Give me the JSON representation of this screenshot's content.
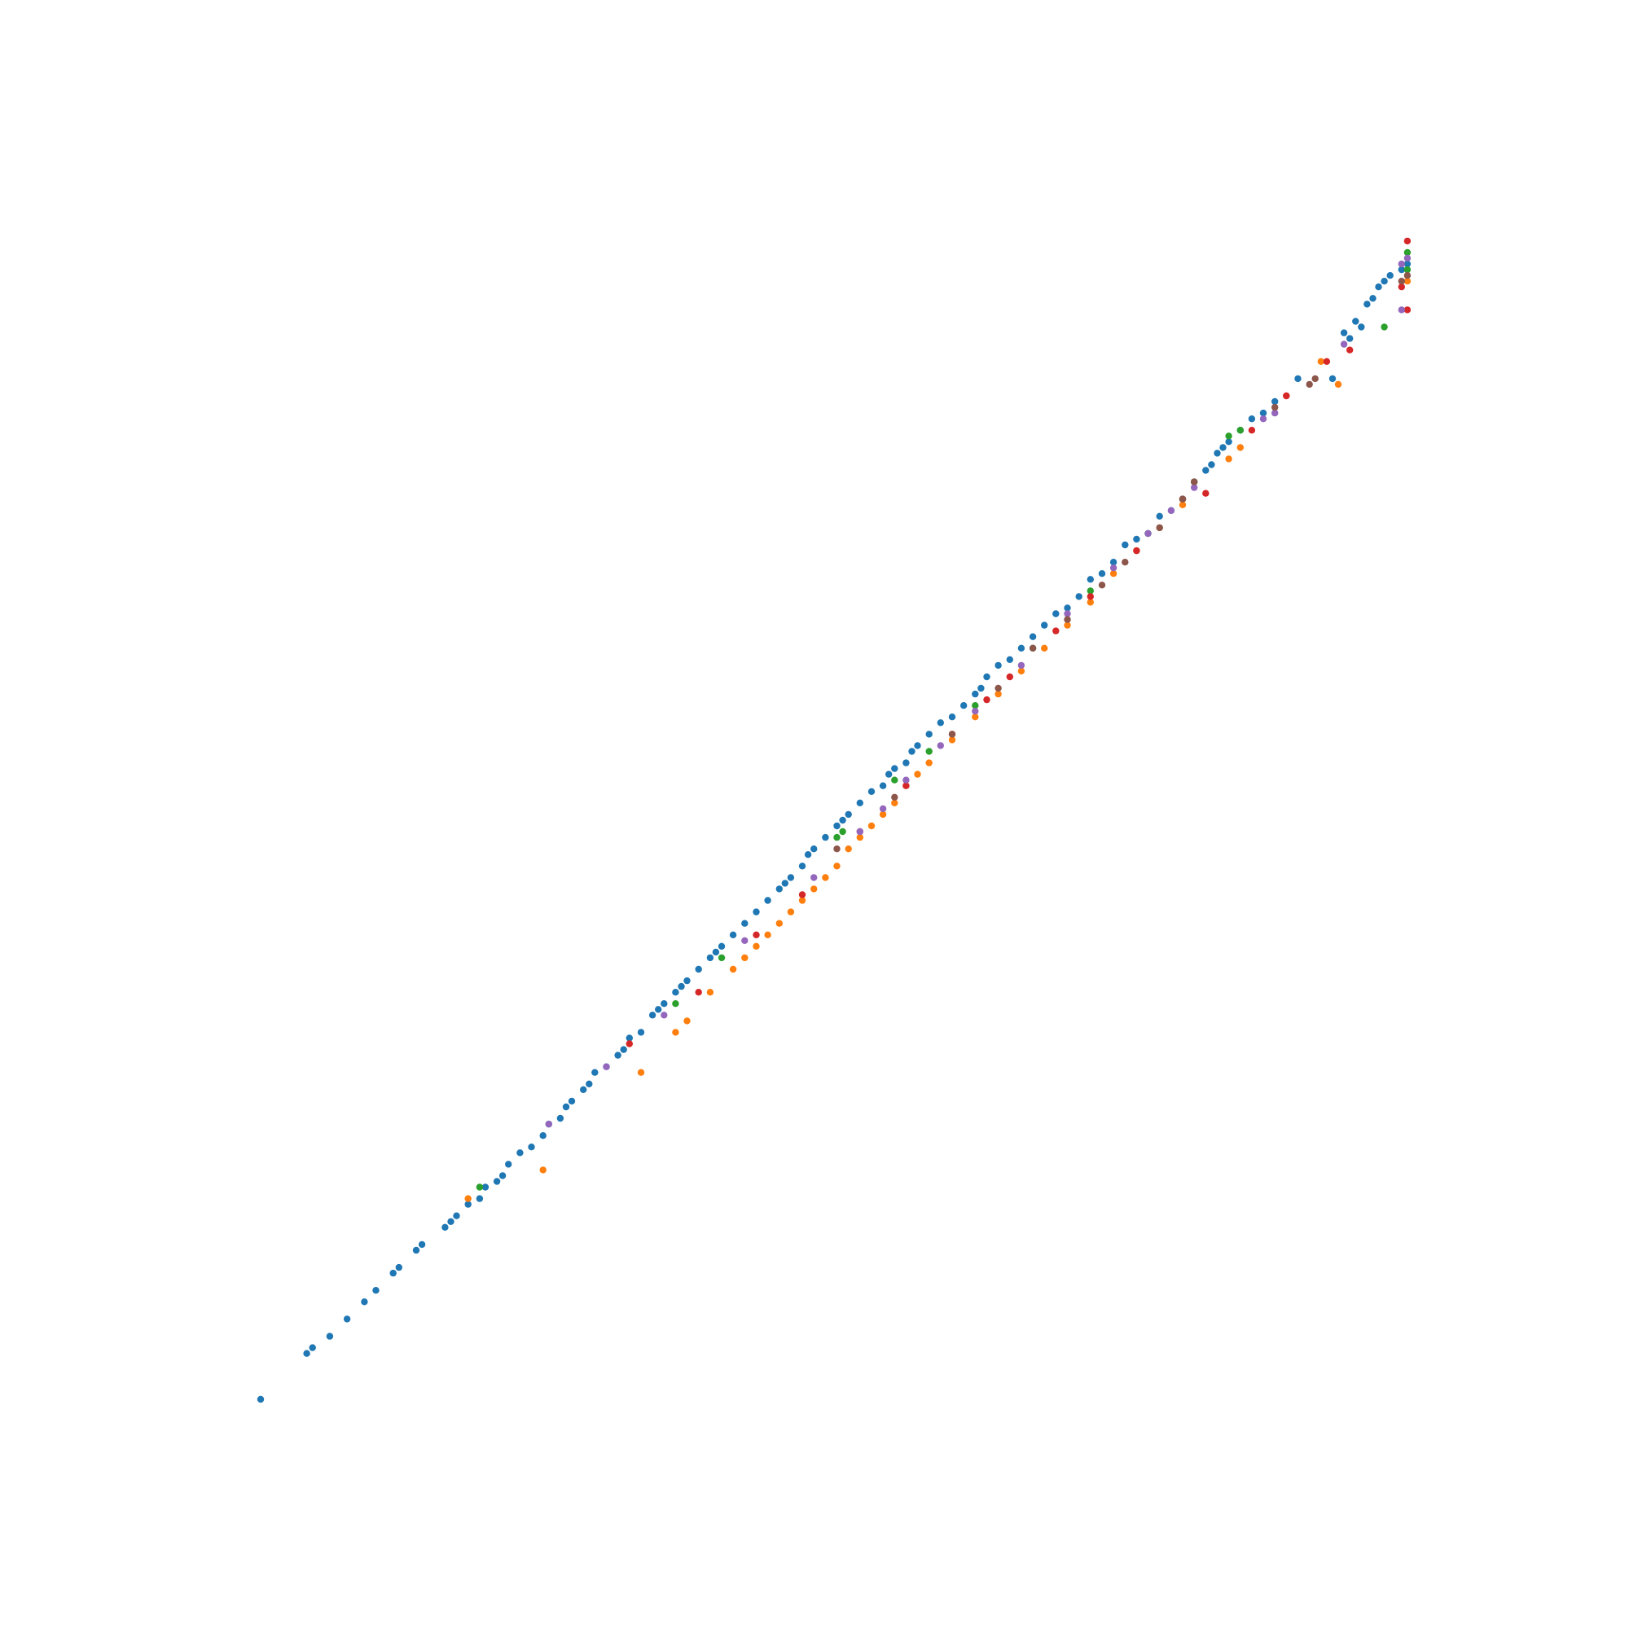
{
  "chart_data": {
    "type": "scatter",
    "title": "",
    "xlabel": "",
    "ylabel": "",
    "axes_visible": false,
    "grid": false,
    "legend": "none",
    "xlim": [
      0,
      1
    ],
    "ylim": [
      0,
      1
    ],
    "series": [
      {
        "color": "#1f77b4",
        "points": [
          [
            0.0,
            0.0
          ],
          [
            0.04,
            0.04
          ],
          [
            0.045,
            0.045
          ],
          [
            0.06,
            0.055
          ],
          [
            0.075,
            0.07
          ],
          [
            0.09,
            0.085
          ],
          [
            0.1,
            0.095
          ],
          [
            0.115,
            0.11
          ],
          [
            0.12,
            0.115
          ],
          [
            0.135,
            0.13
          ],
          [
            0.14,
            0.135
          ],
          [
            0.16,
            0.15
          ],
          [
            0.165,
            0.155
          ],
          [
            0.17,
            0.16
          ],
          [
            0.18,
            0.17
          ],
          [
            0.19,
            0.175
          ],
          [
            0.195,
            0.185
          ],
          [
            0.205,
            0.19
          ],
          [
            0.21,
            0.195
          ],
          [
            0.215,
            0.205
          ],
          [
            0.225,
            0.215
          ],
          [
            0.235,
            0.22
          ],
          [
            0.245,
            0.23
          ],
          [
            0.25,
            0.24
          ],
          [
            0.26,
            0.245
          ],
          [
            0.265,
            0.255
          ],
          [
            0.27,
            0.26
          ],
          [
            0.28,
            0.27
          ],
          [
            0.285,
            0.275
          ],
          [
            0.29,
            0.285
          ],
          [
            0.3,
            0.29
          ],
          [
            0.31,
            0.3
          ],
          [
            0.315,
            0.305
          ],
          [
            0.32,
            0.315
          ],
          [
            0.33,
            0.32
          ],
          [
            0.34,
            0.335
          ],
          [
            0.345,
            0.34
          ],
          [
            0.35,
            0.345
          ],
          [
            0.36,
            0.355
          ],
          [
            0.365,
            0.36
          ],
          [
            0.37,
            0.365
          ],
          [
            0.38,
            0.375
          ],
          [
            0.39,
            0.385
          ],
          [
            0.395,
            0.39
          ],
          [
            0.4,
            0.395
          ],
          [
            0.41,
            0.405
          ],
          [
            0.42,
            0.415
          ],
          [
            0.43,
            0.425
          ],
          [
            0.44,
            0.435
          ],
          [
            0.45,
            0.445
          ],
          [
            0.455,
            0.45
          ],
          [
            0.46,
            0.455
          ],
          [
            0.47,
            0.465
          ],
          [
            0.475,
            0.475
          ],
          [
            0.48,
            0.48
          ],
          [
            0.49,
            0.49
          ],
          [
            0.5,
            0.5
          ],
          [
            0.505,
            0.505
          ],
          [
            0.51,
            0.51
          ],
          [
            0.52,
            0.52
          ],
          [
            0.53,
            0.53
          ],
          [
            0.54,
            0.535
          ],
          [
            0.545,
            0.545
          ],
          [
            0.55,
            0.55
          ],
          [
            0.56,
            0.555
          ],
          [
            0.565,
            0.565
          ],
          [
            0.57,
            0.57
          ],
          [
            0.58,
            0.58
          ],
          [
            0.59,
            0.59
          ],
          [
            0.6,
            0.595
          ],
          [
            0.61,
            0.605
          ],
          [
            0.62,
            0.615
          ],
          [
            0.625,
            0.62
          ],
          [
            0.63,
            0.63
          ],
          [
            0.64,
            0.64
          ],
          [
            0.65,
            0.645
          ],
          [
            0.66,
            0.655
          ],
          [
            0.67,
            0.665
          ],
          [
            0.68,
            0.675
          ],
          [
            0.69,
            0.685
          ],
          [
            0.7,
            0.69
          ],
          [
            0.71,
            0.7
          ],
          [
            0.72,
            0.715
          ],
          [
            0.73,
            0.72
          ],
          [
            0.74,
            0.73
          ],
          [
            0.75,
            0.745
          ],
          [
            0.76,
            0.75
          ],
          [
            0.77,
            0.755
          ],
          [
            0.78,
            0.77
          ],
          [
            0.79,
            0.775
          ],
          [
            0.8,
            0.785
          ],
          [
            0.81,
            0.8
          ],
          [
            0.82,
            0.81
          ],
          [
            0.825,
            0.815
          ],
          [
            0.83,
            0.825
          ],
          [
            0.835,
            0.83
          ],
          [
            0.84,
            0.835
          ],
          [
            0.85,
            0.845
          ],
          [
            0.86,
            0.855
          ],
          [
            0.87,
            0.86
          ],
          [
            0.88,
            0.87
          ],
          [
            0.9,
            0.89
          ],
          [
            0.94,
            0.93
          ],
          [
            0.95,
            0.94
          ],
          [
            0.93,
            0.89
          ],
          [
            0.96,
            0.955
          ],
          [
            0.965,
            0.96
          ],
          [
            0.97,
            0.97
          ],
          [
            0.975,
            0.975
          ],
          [
            0.98,
            0.98
          ],
          [
            0.99,
            0.985
          ],
          [
            0.995,
            0.99
          ],
          [
            0.955,
            0.935
          ],
          [
            0.945,
            0.925
          ]
        ]
      },
      {
        "color": "#ff7f0e",
        "points": [
          [
            0.18,
            0.175
          ],
          [
            0.245,
            0.2
          ],
          [
            0.33,
            0.285
          ],
          [
            0.36,
            0.32
          ],
          [
            0.37,
            0.33
          ],
          [
            0.39,
            0.355
          ],
          [
            0.41,
            0.375
          ],
          [
            0.42,
            0.385
          ],
          [
            0.43,
            0.395
          ],
          [
            0.44,
            0.405
          ],
          [
            0.45,
            0.415
          ],
          [
            0.46,
            0.425
          ],
          [
            0.47,
            0.435
          ],
          [
            0.48,
            0.445
          ],
          [
            0.49,
            0.455
          ],
          [
            0.5,
            0.465
          ],
          [
            0.51,
            0.48
          ],
          [
            0.52,
            0.49
          ],
          [
            0.53,
            0.5
          ],
          [
            0.54,
            0.51
          ],
          [
            0.55,
            0.52
          ],
          [
            0.56,
            0.535
          ],
          [
            0.57,
            0.545
          ],
          [
            0.58,
            0.555
          ],
          [
            0.6,
            0.575
          ],
          [
            0.62,
            0.595
          ],
          [
            0.64,
            0.615
          ],
          [
            0.66,
            0.635
          ],
          [
            0.68,
            0.655
          ],
          [
            0.7,
            0.675
          ],
          [
            0.72,
            0.695
          ],
          [
            0.74,
            0.72
          ],
          [
            0.76,
            0.74
          ],
          [
            0.78,
            0.76
          ],
          [
            0.8,
            0.78
          ],
          [
            0.84,
            0.82
          ],
          [
            0.85,
            0.83
          ],
          [
            0.89,
            0.875
          ],
          [
            0.92,
            0.905
          ],
          [
            0.995,
            0.975
          ],
          [
            0.935,
            0.885
          ]
        ]
      },
      {
        "color": "#2ca02c",
        "points": [
          [
            0.19,
            0.185
          ],
          [
            0.36,
            0.345
          ],
          [
            0.4,
            0.385
          ],
          [
            0.5,
            0.49
          ],
          [
            0.505,
            0.495
          ],
          [
            0.55,
            0.54
          ],
          [
            0.58,
            0.565
          ],
          [
            0.62,
            0.605
          ],
          [
            0.67,
            0.655
          ],
          [
            0.72,
            0.705
          ],
          [
            0.77,
            0.755
          ],
          [
            0.8,
            0.785
          ],
          [
            0.81,
            0.8
          ],
          [
            0.85,
            0.845
          ],
          [
            0.84,
            0.84
          ],
          [
            0.975,
            0.935
          ],
          [
            0.995,
            0.985
          ],
          [
            0.995,
            1.0
          ]
        ]
      },
      {
        "color": "#d62728",
        "points": [
          [
            0.32,
            0.31
          ],
          [
            0.38,
            0.355
          ],
          [
            0.43,
            0.405
          ],
          [
            0.47,
            0.44
          ],
          [
            0.52,
            0.495
          ],
          [
            0.56,
            0.535
          ],
          [
            0.6,
            0.58
          ],
          [
            0.63,
            0.61
          ],
          [
            0.65,
            0.63
          ],
          [
            0.69,
            0.67
          ],
          [
            0.72,
            0.7
          ],
          [
            0.76,
            0.74
          ],
          [
            0.8,
            0.785
          ],
          [
            0.82,
            0.79
          ],
          [
            0.86,
            0.845
          ],
          [
            0.89,
            0.875
          ],
          [
            0.945,
            0.915
          ],
          [
            0.925,
            0.905
          ],
          [
            0.995,
            1.01
          ],
          [
            0.995,
            0.95
          ],
          [
            0.99,
            0.97
          ]
        ]
      },
      {
        "color": "#9467bd",
        "points": [
          [
            0.25,
            0.24
          ],
          [
            0.3,
            0.29
          ],
          [
            0.35,
            0.335
          ],
          [
            0.42,
            0.4
          ],
          [
            0.48,
            0.455
          ],
          [
            0.52,
            0.495
          ],
          [
            0.54,
            0.515
          ],
          [
            0.56,
            0.54
          ],
          [
            0.59,
            0.57
          ],
          [
            0.62,
            0.6
          ],
          [
            0.66,
            0.64
          ],
          [
            0.7,
            0.685
          ],
          [
            0.74,
            0.725
          ],
          [
            0.77,
            0.755
          ],
          [
            0.79,
            0.775
          ],
          [
            0.81,
            0.795
          ],
          [
            0.87,
            0.855
          ],
          [
            0.88,
            0.86
          ],
          [
            0.94,
            0.92
          ],
          [
            0.99,
            0.95
          ],
          [
            0.995,
            0.995
          ],
          [
            0.99,
            0.99
          ]
        ]
      },
      {
        "color": "#8c564b",
        "points": [
          [
            0.5,
            0.48
          ],
          [
            0.55,
            0.525
          ],
          [
            0.6,
            0.58
          ],
          [
            0.64,
            0.62
          ],
          [
            0.67,
            0.655
          ],
          [
            0.7,
            0.68
          ],
          [
            0.73,
            0.71
          ],
          [
            0.75,
            0.73
          ],
          [
            0.78,
            0.76
          ],
          [
            0.8,
            0.785
          ],
          [
            0.81,
            0.8
          ],
          [
            0.88,
            0.865
          ],
          [
            0.91,
            0.885
          ],
          [
            0.915,
            0.89
          ],
          [
            0.99,
            0.975
          ],
          [
            0.995,
            0.98
          ]
        ]
      }
    ]
  }
}
